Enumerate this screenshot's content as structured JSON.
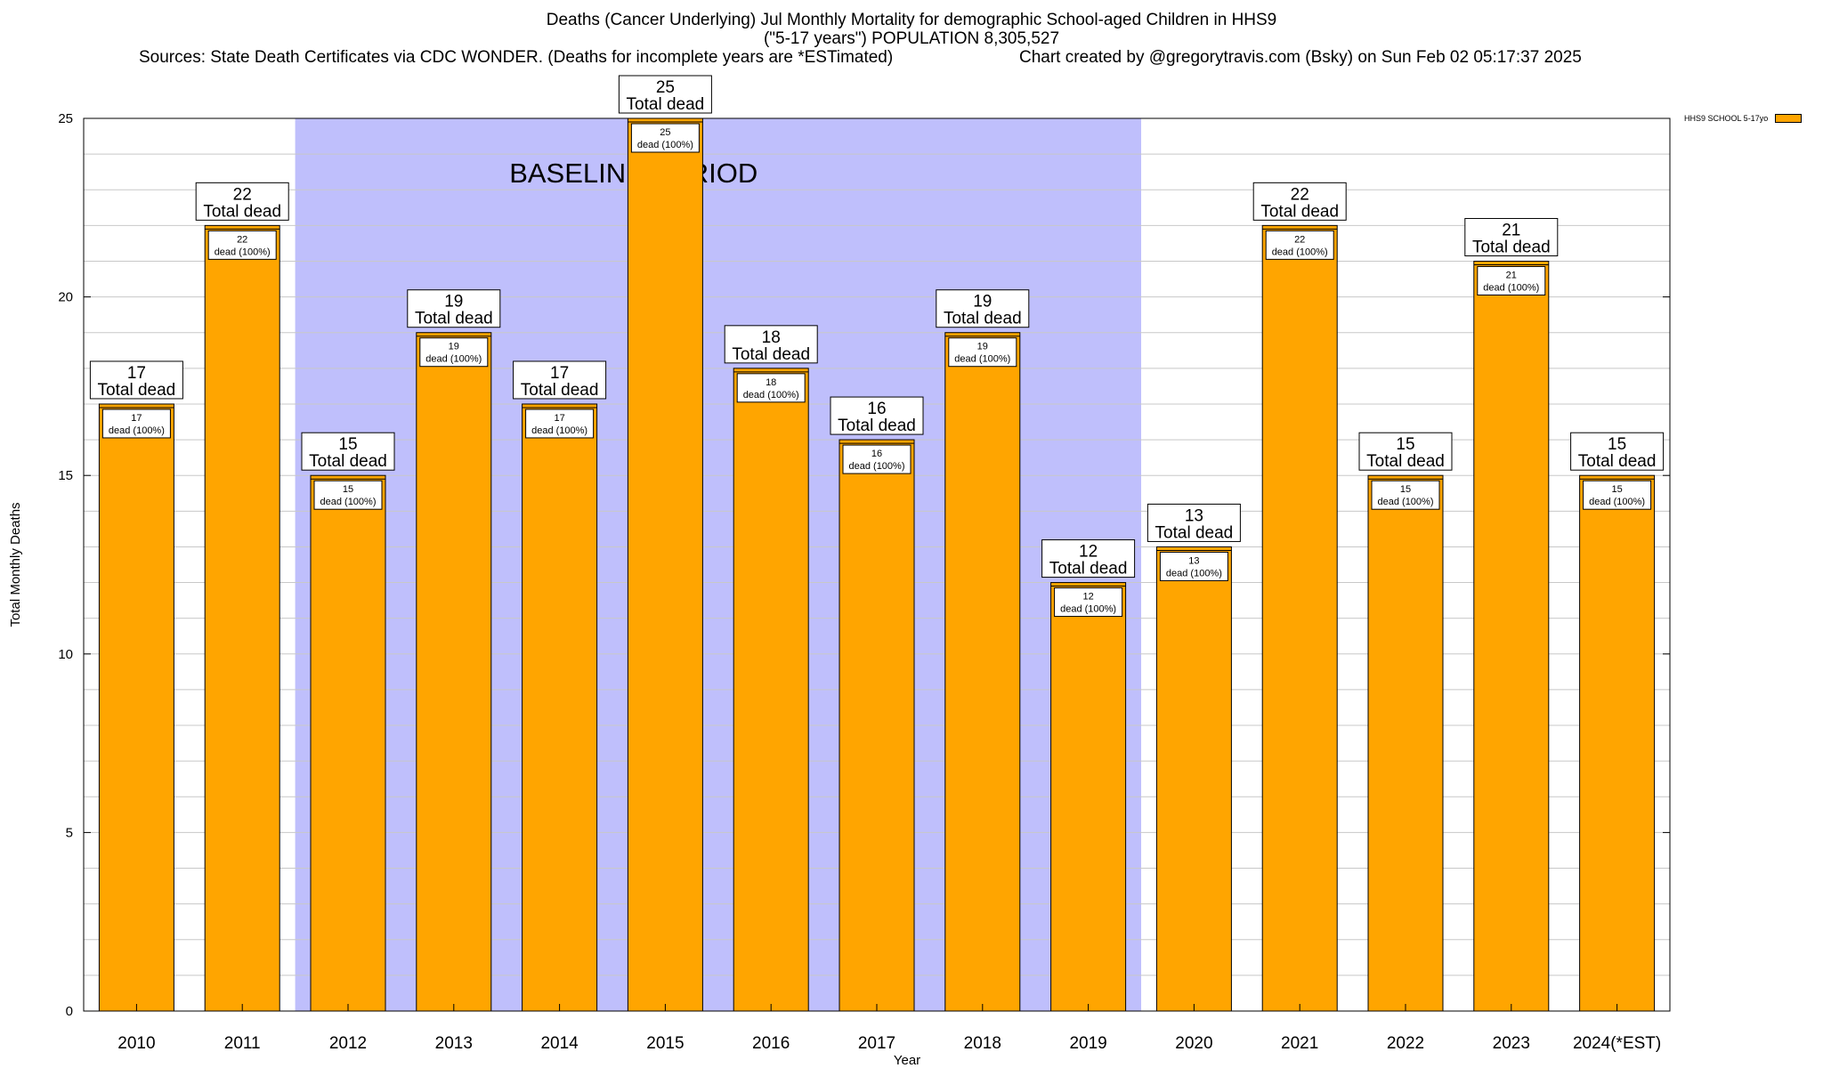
{
  "title": {
    "line1": "Deaths (Cancer Underlying) Jul Monthly Mortality for demographic School-aged Children in HHS9",
    "line2": "(\"5-17 years\") POPULATION 8,305,527",
    "sources": "Sources: State Death Certificates via CDC WONDER. (Deaths for incomplete years are *ESTimated)",
    "credit": "Chart created by @gregorytravis.com (Bsky) on Sun Feb 02 05:17:37 2025"
  },
  "legend": {
    "label": "HHS9 SCHOOL 5-17yo"
  },
  "colors": {
    "bar": "#ffa500",
    "baseline": "#bfbffc",
    "grid": "#c8c8c8"
  },
  "chart_data": {
    "type": "bar",
    "title": "Deaths (Cancer Underlying) Jul Monthly Mortality for demographic School-aged Children in HHS9",
    "xlabel": "Year",
    "ylabel": "Total Monthly Deaths",
    "ylim": [
      0,
      25
    ],
    "yticks": [
      0,
      5,
      10,
      15,
      20,
      25
    ],
    "grid": true,
    "legend_position": "top-right",
    "categories": [
      "2010",
      "2011",
      "2012",
      "2013",
      "2014",
      "2015",
      "2016",
      "2017",
      "2018",
      "2019",
      "2020",
      "2021",
      "2022",
      "2023",
      "2024(*EST)"
    ],
    "series": [
      {
        "name": "HHS9 SCHOOL 5-17yo",
        "values": [
          17,
          22,
          15,
          19,
          17,
          25,
          18,
          16,
          19,
          12,
          13,
          22,
          15,
          21,
          15
        ]
      }
    ],
    "top_label_suffix": "Total dead",
    "inner_label_suffix": "dead (100%)",
    "baseline_period": {
      "label": "BASELINE PERIOD",
      "from": "2012",
      "to": "2019"
    }
  }
}
